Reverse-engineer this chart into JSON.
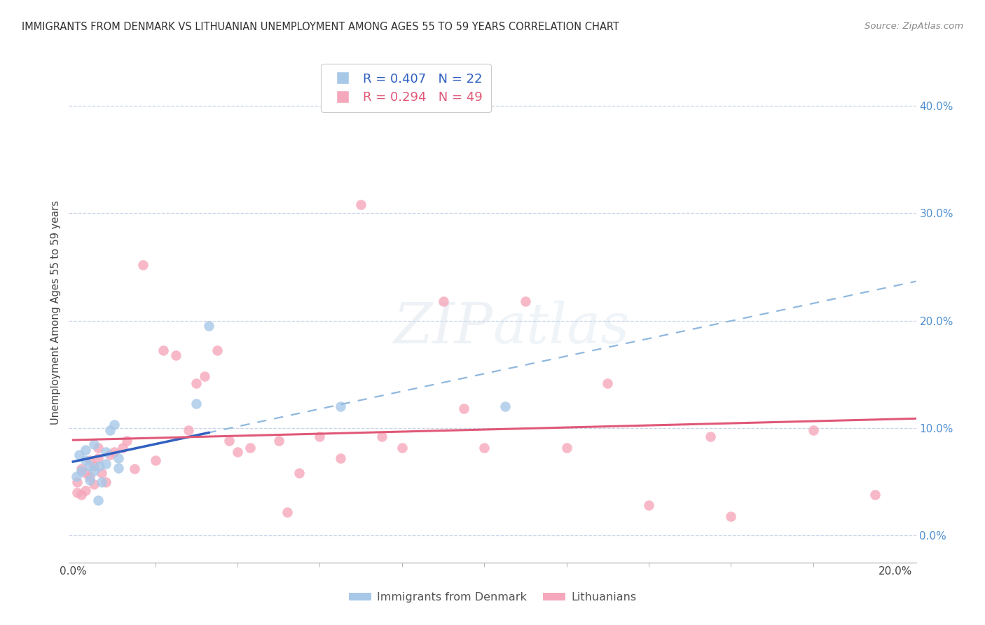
{
  "title": "IMMIGRANTS FROM DENMARK VS LITHUANIAN UNEMPLOYMENT AMONG AGES 55 TO 59 YEARS CORRELATION CHART",
  "source": "Source: ZipAtlas.com",
  "ylabel": "Unemployment Among Ages 55 to 59 years",
  "xlim": [
    -0.001,
    0.205
  ],
  "ylim": [
    -0.025,
    0.44
  ],
  "ytick_vals": [
    0.0,
    0.1,
    0.2,
    0.3,
    0.4
  ],
  "ytick_labels": [
    "0.0%",
    "10.0%",
    "20.0%",
    "30.0%",
    "40.0%"
  ],
  "xtick_vals": [
    0.0,
    0.2
  ],
  "xtick_labels": [
    "0.0%",
    "20.0%"
  ],
  "R1": 0.407,
  "N1": 22,
  "R2": 0.294,
  "N2": 49,
  "color_blue": "#a8c8e8",
  "color_pink": "#f5a8bb",
  "line_blue_solid": "#3060c0",
  "line_blue_dashed": "#90b8de",
  "line_pink_solid": "#e05878",
  "legend_label1": "Immigrants from Denmark",
  "legend_label2": "Lithuanians",
  "denmark_x": [
    0.0008,
    0.0015,
    0.002,
    0.003,
    0.003,
    0.004,
    0.004,
    0.005,
    0.005,
    0.006,
    0.0065,
    0.007,
    0.008,
    0.008,
    0.009,
    0.01,
    0.011,
    0.011,
    0.03,
    0.033,
    0.065,
    0.105
  ],
  "denmark_y": [
    0.055,
    0.075,
    0.06,
    0.07,
    0.08,
    0.052,
    0.065,
    0.06,
    0.085,
    0.033,
    0.065,
    0.05,
    0.067,
    0.078,
    0.098,
    0.103,
    0.063,
    0.072,
    0.123,
    0.195,
    0.12,
    0.12
  ],
  "lithuanian_x": [
    0.001,
    0.001,
    0.002,
    0.002,
    0.003,
    0.003,
    0.004,
    0.004,
    0.005,
    0.005,
    0.006,
    0.006,
    0.007,
    0.008,
    0.009,
    0.01,
    0.012,
    0.013,
    0.015,
    0.017,
    0.02,
    0.022,
    0.025,
    0.028,
    0.03,
    0.032,
    0.035,
    0.038,
    0.04,
    0.043,
    0.05,
    0.052,
    0.055,
    0.06,
    0.065,
    0.07,
    0.075,
    0.08,
    0.09,
    0.095,
    0.1,
    0.11,
    0.12,
    0.13,
    0.14,
    0.155,
    0.16,
    0.18,
    0.195
  ],
  "lithuanian_y": [
    0.04,
    0.05,
    0.038,
    0.062,
    0.042,
    0.058,
    0.055,
    0.07,
    0.048,
    0.065,
    0.082,
    0.072,
    0.058,
    0.05,
    0.075,
    0.078,
    0.082,
    0.088,
    0.062,
    0.252,
    0.07,
    0.172,
    0.168,
    0.098,
    0.142,
    0.148,
    0.172,
    0.088,
    0.078,
    0.082,
    0.088,
    0.022,
    0.058,
    0.092,
    0.072,
    0.308,
    0.092,
    0.082,
    0.218,
    0.118,
    0.082,
    0.218,
    0.082,
    0.142,
    0.028,
    0.092,
    0.018,
    0.098,
    0.038
  ],
  "background_color": "#ffffff",
  "grid_color": "#c8d4e8"
}
